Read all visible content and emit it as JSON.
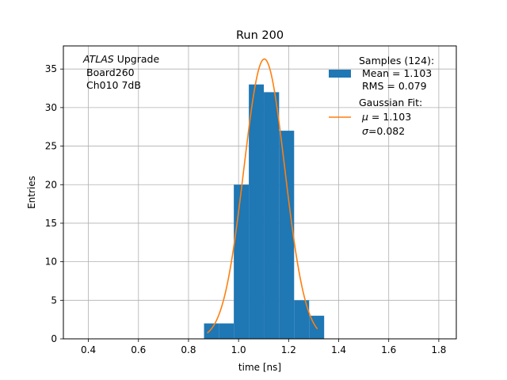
{
  "chart_data": {
    "type": "bar",
    "title": "Run 200",
    "xlabel": "time [ns]",
    "ylabel": "Entries",
    "xlim": [
      0.3,
      1.87
    ],
    "ylim": [
      0,
      38
    ],
    "grid": true,
    "xticks": [
      "0.4",
      "0.6",
      "0.8",
      "1.0",
      "1.2",
      "1.4",
      "1.6",
      "1.8"
    ],
    "yticks": [
      "0",
      "5",
      "10",
      "15",
      "20",
      "25",
      "30",
      "35"
    ],
    "xtick_values": [
      0.4,
      0.6,
      0.8,
      1.0,
      1.2,
      1.4,
      1.6,
      1.8
    ],
    "ytick_values": [
      0,
      5,
      10,
      15,
      20,
      25,
      30,
      35
    ],
    "annotation": {
      "experiment": "ATLAS",
      "experiment_suffix": " Upgrade",
      "line2": "Board260",
      "line3": "Ch010 7dB"
    },
    "histogram": {
      "bin_edges": [
        0.862,
        0.921,
        0.981,
        1.041,
        1.101,
        1.162,
        1.222,
        1.282,
        1.342
      ],
      "counts": [
        2,
        2,
        20,
        33,
        32,
        27,
        5,
        3
      ],
      "color": "#1f77b4"
    },
    "fit": {
      "mean": 1.103,
      "sigma": 0.082,
      "amplitude": 36.3,
      "x_range": [
        0.875,
        1.315
      ],
      "color": "#ff7f0e"
    },
    "legend": {
      "placement": "top-right",
      "samples_header": "Samples (124):",
      "samples_mean": "Mean = 1.103",
      "samples_rms": "RMS = 0.079",
      "fit_header": "Gaussian Fit:",
      "fit_mu_label": "μ",
      "fit_mu_value": " = 1.103",
      "fit_sigma_label": "σ",
      "fit_sigma_value": "=0.082"
    }
  }
}
